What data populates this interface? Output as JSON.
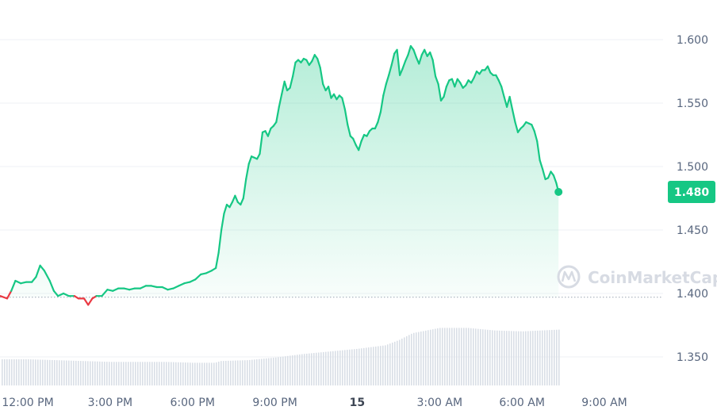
{
  "watermark": "CoinMarketCap",
  "colors": {
    "up": "#16c784",
    "down": "#ea3943",
    "fill_top": "#16c784",
    "grid": "#eff2f5",
    "volume": "#d9dee6",
    "axis_text": "#58667e",
    "tag_bg": "#16c784"
  },
  "chart_data": {
    "type": "area",
    "title": "",
    "xlabel": "",
    "ylabel": "",
    "ylim": [
      1.325,
      1.625
    ],
    "y_ticks": [
      "1.350",
      "1.400",
      "1.450",
      "1.500",
      "1.550",
      "1.600"
    ],
    "x_ticks": [
      {
        "label": "12:00 PM",
        "hour": 12,
        "bold": false
      },
      {
        "label": "3:00 PM",
        "hour": 15,
        "bold": false
      },
      {
        "label": "6:00 PM",
        "hour": 18,
        "bold": false
      },
      {
        "label": "9:00 PM",
        "hour": 21,
        "bold": false
      },
      {
        "label": "15",
        "hour": 24,
        "bold": true
      },
      {
        "label": "3:00 AM",
        "hour": 27,
        "bold": false
      },
      {
        "label": "6:00 AM",
        "hour": 30,
        "bold": false
      },
      {
        "label": "9:00 AM",
        "hour": 33,
        "bold": false
      }
    ],
    "x_range_hours": [
      11.0,
      35.0
    ],
    "baseline_value": 1.397,
    "current_price": "1.480",
    "series": [
      {
        "values": [
          [
            11.0,
            1.398
          ],
          [
            11.25,
            1.396
          ],
          [
            11.4,
            1.402
          ],
          [
            11.55,
            1.41
          ],
          [
            11.75,
            1.408
          ],
          [
            11.95,
            1.409
          ],
          [
            12.15,
            1.409
          ],
          [
            12.3,
            1.413
          ],
          [
            12.45,
            1.422
          ],
          [
            12.6,
            1.418
          ],
          [
            12.8,
            1.41
          ],
          [
            12.95,
            1.402
          ],
          [
            13.1,
            1.398
          ],
          [
            13.3,
            1.4
          ],
          [
            13.5,
            1.398
          ],
          [
            13.7,
            1.398
          ],
          [
            13.85,
            1.396
          ],
          [
            14.05,
            1.396
          ],
          [
            14.2,
            1.391
          ],
          [
            14.35,
            1.396
          ],
          [
            14.5,
            1.398
          ],
          [
            14.7,
            1.398
          ],
          [
            14.9,
            1.403
          ],
          [
            15.1,
            1.402
          ],
          [
            15.3,
            1.404
          ],
          [
            15.5,
            1.404
          ],
          [
            15.7,
            1.403
          ],
          [
            15.9,
            1.404
          ],
          [
            16.1,
            1.404
          ],
          [
            16.3,
            1.406
          ],
          [
            16.5,
            1.406
          ],
          [
            16.7,
            1.405
          ],
          [
            16.9,
            1.405
          ],
          [
            17.1,
            1.403
          ],
          [
            17.3,
            1.404
          ],
          [
            17.5,
            1.406
          ],
          [
            17.7,
            1.408
          ],
          [
            17.9,
            1.409
          ],
          [
            18.1,
            1.411
          ],
          [
            18.3,
            1.415
          ],
          [
            18.5,
            1.416
          ],
          [
            18.7,
            1.418
          ],
          [
            18.85,
            1.42
          ],
          [
            18.95,
            1.432
          ],
          [
            19.05,
            1.45
          ],
          [
            19.15,
            1.463
          ],
          [
            19.25,
            1.47
          ],
          [
            19.35,
            1.468
          ],
          [
            19.45,
            1.472
          ],
          [
            19.55,
            1.477
          ],
          [
            19.65,
            1.472
          ],
          [
            19.75,
            1.47
          ],
          [
            19.85,
            1.475
          ],
          [
            19.95,
            1.49
          ],
          [
            20.05,
            1.502
          ],
          [
            20.15,
            1.508
          ],
          [
            20.25,
            1.507
          ],
          [
            20.35,
            1.506
          ],
          [
            20.45,
            1.51
          ],
          [
            20.55,
            1.527
          ],
          [
            20.65,
            1.528
          ],
          [
            20.75,
            1.524
          ],
          [
            20.85,
            1.53
          ],
          [
            20.95,
            1.532
          ],
          [
            21.05,
            1.535
          ],
          [
            21.15,
            1.547
          ],
          [
            21.25,
            1.557
          ],
          [
            21.35,
            1.567
          ],
          [
            21.45,
            1.56
          ],
          [
            21.55,
            1.562
          ],
          [
            21.65,
            1.571
          ],
          [
            21.75,
            1.582
          ],
          [
            21.85,
            1.584
          ],
          [
            21.95,
            1.582
          ],
          [
            22.05,
            1.585
          ],
          [
            22.15,
            1.584
          ],
          [
            22.25,
            1.58
          ],
          [
            22.35,
            1.583
          ],
          [
            22.45,
            1.588
          ],
          [
            22.55,
            1.585
          ],
          [
            22.65,
            1.578
          ],
          [
            22.75,
            1.565
          ],
          [
            22.85,
            1.56
          ],
          [
            22.95,
            1.563
          ],
          [
            23.05,
            1.554
          ],
          [
            23.15,
            1.557
          ],
          [
            23.25,
            1.553
          ],
          [
            23.35,
            1.556
          ],
          [
            23.45,
            1.554
          ],
          [
            23.55,
            1.545
          ],
          [
            23.65,
            1.533
          ],
          [
            23.75,
            1.524
          ],
          [
            23.85,
            1.522
          ],
          [
            23.95,
            1.517
          ],
          [
            24.05,
            1.513
          ],
          [
            24.15,
            1.52
          ],
          [
            24.25,
            1.525
          ],
          [
            24.35,
            1.524
          ],
          [
            24.45,
            1.528
          ],
          [
            24.55,
            1.53
          ],
          [
            24.65,
            1.53
          ],
          [
            24.75,
            1.535
          ],
          [
            24.85,
            1.543
          ],
          [
            24.95,
            1.556
          ],
          [
            25.05,
            1.565
          ],
          [
            25.15,
            1.572
          ],
          [
            25.25,
            1.58
          ],
          [
            25.35,
            1.589
          ],
          [
            25.45,
            1.592
          ],
          [
            25.55,
            1.572
          ],
          [
            25.65,
            1.577
          ],
          [
            25.75,
            1.583
          ],
          [
            25.85,
            1.588
          ],
          [
            25.95,
            1.595
          ],
          [
            26.05,
            1.592
          ],
          [
            26.15,
            1.586
          ],
          [
            26.25,
            1.581
          ],
          [
            26.35,
            1.588
          ],
          [
            26.45,
            1.592
          ],
          [
            26.55,
            1.587
          ],
          [
            26.65,
            1.59
          ],
          [
            26.75,
            1.584
          ],
          [
            26.85,
            1.571
          ],
          [
            26.95,
            1.565
          ],
          [
            27.05,
            1.552
          ],
          [
            27.15,
            1.555
          ],
          [
            27.25,
            1.563
          ],
          [
            27.35,
            1.568
          ],
          [
            27.45,
            1.569
          ],
          [
            27.55,
            1.563
          ],
          [
            27.65,
            1.569
          ],
          [
            27.75,
            1.566
          ],
          [
            27.85,
            1.562
          ],
          [
            27.95,
            1.564
          ],
          [
            28.05,
            1.568
          ],
          [
            28.15,
            1.566
          ],
          [
            28.25,
            1.57
          ],
          [
            28.35,
            1.575
          ],
          [
            28.45,
            1.573
          ],
          [
            28.55,
            1.576
          ],
          [
            28.65,
            1.576
          ],
          [
            28.75,
            1.579
          ],
          [
            28.85,
            1.574
          ],
          [
            28.95,
            1.572
          ],
          [
            29.05,
            1.572
          ],
          [
            29.15,
            1.568
          ],
          [
            29.25,
            1.563
          ],
          [
            29.35,
            1.555
          ],
          [
            29.45,
            1.547
          ],
          [
            29.55,
            1.555
          ],
          [
            29.65,
            1.545
          ],
          [
            29.75,
            1.535
          ],
          [
            29.85,
            1.527
          ],
          [
            29.95,
            1.53
          ],
          [
            30.05,
            1.532
          ],
          [
            30.15,
            1.535
          ],
          [
            30.25,
            1.534
          ],
          [
            30.35,
            1.533
          ],
          [
            30.45,
            1.528
          ],
          [
            30.55,
            1.52
          ],
          [
            30.65,
            1.505
          ],
          [
            30.75,
            1.498
          ],
          [
            30.85,
            1.49
          ],
          [
            30.95,
            1.491
          ],
          [
            31.05,
            1.496
          ],
          [
            31.15,
            1.493
          ],
          [
            31.25,
            1.487
          ],
          [
            31.33,
            1.48
          ]
        ]
      }
    ],
    "volume_relative": [
      [
        11.0,
        0.3
      ],
      [
        12.0,
        0.3
      ],
      [
        13.0,
        0.29
      ],
      [
        14.0,
        0.28
      ],
      [
        15.0,
        0.27
      ],
      [
        16.0,
        0.27
      ],
      [
        17.0,
        0.27
      ],
      [
        18.0,
        0.26
      ],
      [
        18.8,
        0.26
      ],
      [
        19.0,
        0.28
      ],
      [
        20.0,
        0.29
      ],
      [
        21.0,
        0.32
      ],
      [
        22.0,
        0.36
      ],
      [
        23.0,
        0.39
      ],
      [
        24.0,
        0.42
      ],
      [
        25.0,
        0.46
      ],
      [
        25.5,
        0.52
      ],
      [
        26.0,
        0.6
      ],
      [
        27.0,
        0.66
      ],
      [
        28.0,
        0.66
      ],
      [
        29.0,
        0.63
      ],
      [
        30.0,
        0.62
      ],
      [
        31.33,
        0.64
      ]
    ]
  }
}
